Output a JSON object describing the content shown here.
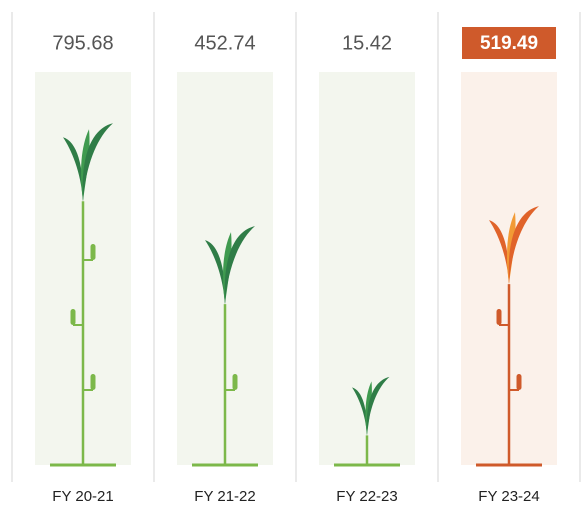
{
  "chart_data": {
    "type": "plant",
    "categories": [
      "FY 20-21",
      "FY 21-22",
      "FY 22-23",
      "FY 23-24"
    ],
    "values": [
      795.68,
      452.74,
      15.42,
      519.49
    ],
    "color": "#7cb84a",
    "leaf_colors": [
      "#2f7d47",
      "#3f9a4f"
    ],
    "highlight_index": 3,
    "highlight_color": "#cf5a2b",
    "highlight_leaf_colors": [
      "#e0632a",
      "#f29a35"
    ]
  }
}
